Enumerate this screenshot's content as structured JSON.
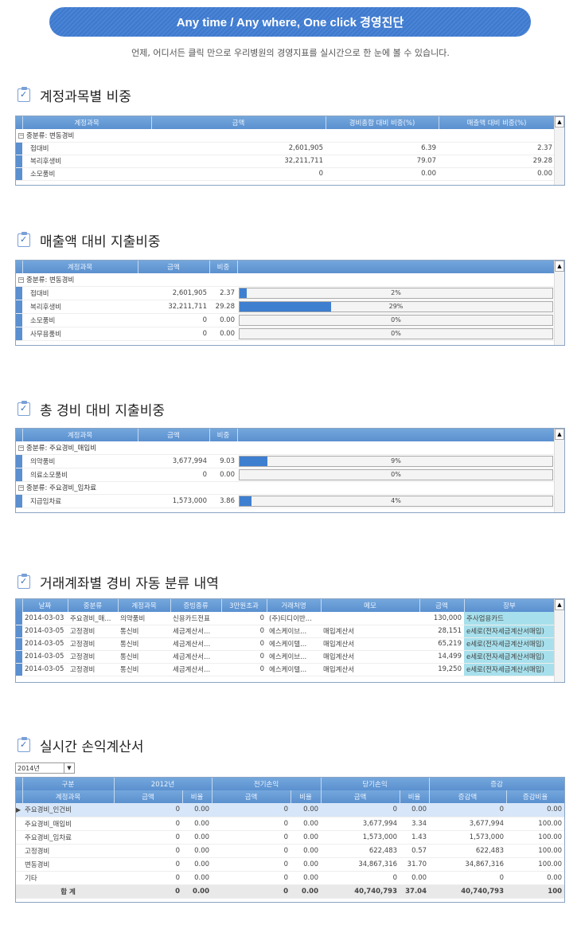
{
  "banner": "Any time / Any where, One click 경영진단",
  "subtitle": "언제, 어디서든 클릭 만으로 우리병원의 경영지표를 실시간으로 한 눈에 볼 수 있습니다.",
  "sections": {
    "s1": {
      "title": "계정과목별 비중",
      "headers": [
        "계정과목",
        "금액",
        "경비총합 대비 비중(%)",
        "매출액 대비 비중(%)"
      ],
      "group": "중분류: 변동경비",
      "rows": [
        {
          "name": "접대비",
          "amount": "2,601,905",
          "c1": "6.39",
          "c2": "2.37"
        },
        {
          "name": "복리후생비",
          "amount": "32,211,711",
          "c1": "79.07",
          "c2": "29.28"
        },
        {
          "name": "소모품비",
          "amount": "0",
          "c1": "0.00",
          "c2": "0.00"
        }
      ]
    },
    "s2": {
      "title": "매출액 대비 지출비중",
      "headers": [
        "계정과목",
        "금액",
        "비중"
      ],
      "group": "중분류: 변동경비",
      "rows": [
        {
          "name": "접대비",
          "amount": "2,601,905",
          "ratio": "2.37",
          "pct": "2%",
          "fill": 0.0237
        },
        {
          "name": "복리후생비",
          "amount": "32,211,711",
          "ratio": "29.28",
          "pct": "29%",
          "fill": 0.2928
        },
        {
          "name": "소모품비",
          "amount": "0",
          "ratio": "0.00",
          "pct": "0%",
          "fill": 0
        },
        {
          "name": "사무용품비",
          "amount": "0",
          "ratio": "0.00",
          "pct": "0%",
          "fill": 0
        }
      ]
    },
    "s3": {
      "title": "총 경비 대비 지출비중",
      "headers": [
        "계정과목",
        "금액",
        "비중"
      ],
      "group1": "중분류: 주요경비_매입비",
      "rows1": [
        {
          "name": "의약품비",
          "amount": "3,677,994",
          "ratio": "9.03",
          "pct": "9%",
          "fill": 0.0903
        },
        {
          "name": "의료소모품비",
          "amount": "0",
          "ratio": "0.00",
          "pct": "0%",
          "fill": 0
        }
      ],
      "group2": "중분류: 주요경비_임차료",
      "rows2": [
        {
          "name": "지급임차료",
          "amount": "1,573,000",
          "ratio": "3.86",
          "pct": "4%",
          "fill": 0.0386
        }
      ]
    },
    "s4": {
      "title": "거래계좌별 경비 자동 분류 내역",
      "headers": [
        "날짜",
        "중분류",
        "계정과목",
        "증빙종류",
        "3만원초과",
        "거래처명",
        "메모",
        "금액",
        "장부"
      ],
      "rows": [
        {
          "date": "2014-03-03",
          "cat": "주요경비_매...",
          "acct": "의약품비",
          "proof": "신용카드전표",
          "over": "0",
          "vendor": "(주)티디이반...",
          "memo": "",
          "amount": "130,000",
          "book": "주사업용카드"
        },
        {
          "date": "2014-03-05",
          "cat": "고정경비",
          "acct": "통신비",
          "proof": "세금계산서...",
          "over": "0",
          "vendor": "에스케이브...",
          "memo": "매입계산서",
          "amount": "28,151",
          "book": "e세로(전자세금계산서매입)"
        },
        {
          "date": "2014-03-05",
          "cat": "고정경비",
          "acct": "통신비",
          "proof": "세금계산서...",
          "over": "0",
          "vendor": "에스케이텔...",
          "memo": "매입계산서",
          "amount": "65,219",
          "book": "e세로(전자세금계산서매입)"
        },
        {
          "date": "2014-03-05",
          "cat": "고정경비",
          "acct": "통신비",
          "proof": "세금계산서...",
          "over": "0",
          "vendor": "에스케이브...",
          "memo": "매입계산서",
          "amount": "14,499",
          "book": "e세로(전자세금계산서매입)"
        },
        {
          "date": "2014-03-05",
          "cat": "고정경비",
          "acct": "통신비",
          "proof": "세금계산서...",
          "over": "0",
          "vendor": "에스케이텔...",
          "memo": "매입계산서",
          "amount": "19,250",
          "book": "e세로(전자세금계산서매입)"
        }
      ]
    },
    "s5": {
      "title": "실시간 손익계산서",
      "year": "2014년",
      "top_headers": [
        "구분",
        "2012년",
        "전기손익",
        "당기손익",
        "증감"
      ],
      "sub_headers": [
        "계정과목",
        "금액",
        "비율",
        "금액",
        "비율",
        "금액",
        "비율",
        "증감액",
        "증감비율"
      ],
      "rows": [
        {
          "v": [
            "주요경비_인건비",
            "0",
            "0.00",
            "0",
            "0.00",
            "0",
            "0.00",
            "0",
            "0.00"
          ]
        },
        {
          "v": [
            "주요경비_매입비",
            "0",
            "0.00",
            "0",
            "0.00",
            "3,677,994",
            "3.34",
            "3,677,994",
            "100.00"
          ]
        },
        {
          "v": [
            "주요경비_임차료",
            "0",
            "0.00",
            "0",
            "0.00",
            "1,573,000",
            "1.43",
            "1,573,000",
            "100.00"
          ]
        },
        {
          "v": [
            "고정경비",
            "0",
            "0.00",
            "0",
            "0.00",
            "622,483",
            "0.57",
            "622,483",
            "100.00"
          ]
        },
        {
          "v": [
            "변동경비",
            "0",
            "0.00",
            "0",
            "0.00",
            "34,867,316",
            "31.70",
            "34,867,316",
            "100.00"
          ]
        },
        {
          "v": [
            "기타",
            "0",
            "0.00",
            "0",
            "0.00",
            "0",
            "0.00",
            "0",
            "0.00"
          ]
        }
      ],
      "total": [
        "합 계",
        "0",
        "0.00",
        "0",
        "0.00",
        "40,740,793",
        "37.04",
        "40,740,793",
        "100"
      ]
    }
  }
}
